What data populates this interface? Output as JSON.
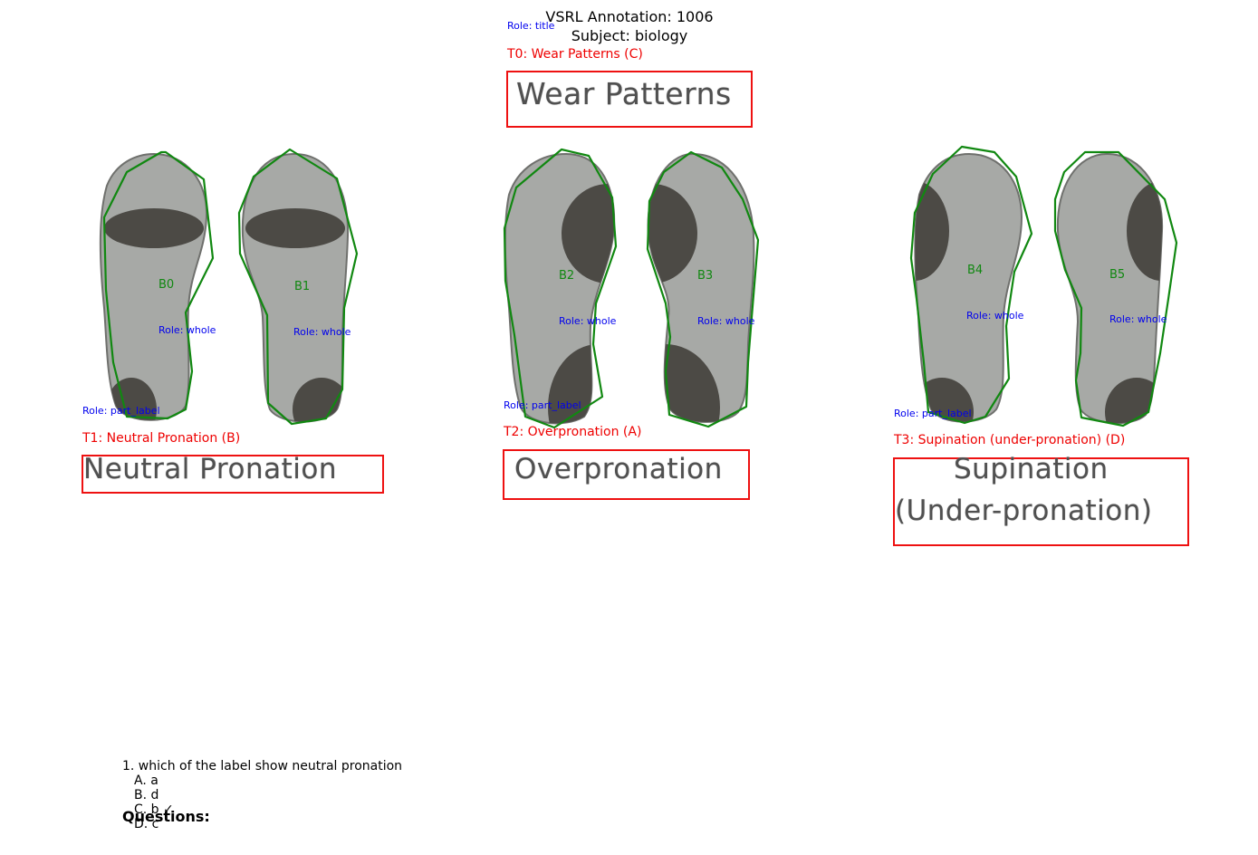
{
  "header": {
    "title": "VSRL Annotation: 1006",
    "subject": "Subject: biology"
  },
  "roles": {
    "title": "Role: title",
    "whole": "Role: whole",
    "part_label": "Role: part_label"
  },
  "texts": [
    {
      "id": "T0",
      "annotation": "T0: Wear Patterns (C)",
      "content": "Wear Patterns"
    },
    {
      "id": "T1",
      "annotation": "T1: Neutral Pronation (B)",
      "content": "Neutral Pronation"
    },
    {
      "id": "T2",
      "annotation": "T2: Overpronation (A)",
      "content": "Overpronation"
    },
    {
      "id": "T3",
      "annotation": "T3: Supination (under-pronation) (D)",
      "content_line1": "Supination",
      "content_line2": "(Under-pronation)"
    }
  ],
  "blobs": [
    "B0",
    "B1",
    "B2",
    "B3",
    "B4",
    "B5"
  ],
  "colors": {
    "text_box": "#ee1111",
    "blob_outline": "#118811",
    "role": "#0000ee",
    "foot_light": "#a7a9a6",
    "foot_dark": "#4c4a45"
  },
  "questions": {
    "heading": "Questions:",
    "items": [
      {
        "text": "1. which of the label show neutral pronation",
        "options": [
          "A. a",
          "B. d",
          "C. b ✓",
          "D. c"
        ]
      }
    ]
  }
}
